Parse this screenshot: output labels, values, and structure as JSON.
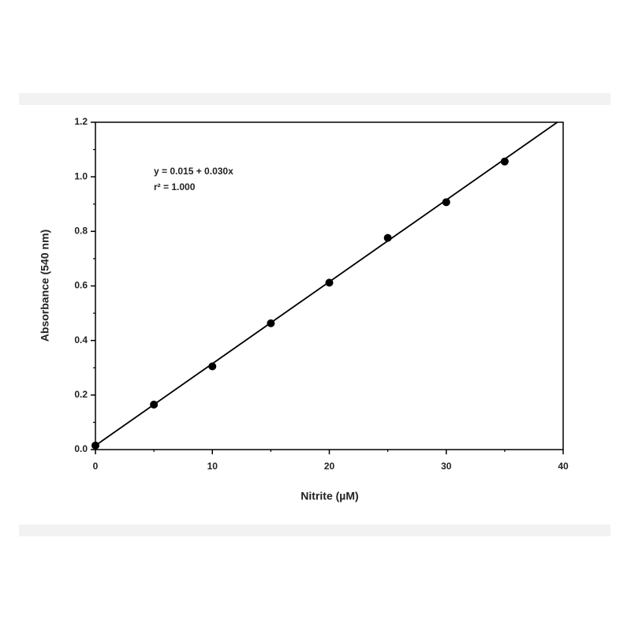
{
  "chart_data": {
    "type": "scatter",
    "annotations": [
      "y = 0.015 + 0.030x",
      "r² = 1.000"
    ],
    "xlabel": "Nitrite (µM)",
    "ylabel": "Absorbance (540 nm)",
    "x": [
      0,
      5,
      10,
      15,
      20,
      25,
      30,
      35
    ],
    "series": [
      {
        "color": "#000000",
        "values": [
          0.015,
          0.165,
          0.305,
          0.463,
          0.612,
          0.776,
          0.907,
          1.056
        ]
      }
    ],
    "fit_line": {
      "intercept": 0.015,
      "slope": 0.03,
      "color": "#000000"
    },
    "xlim": [
      0,
      40
    ],
    "xticks": [
      0,
      10,
      20,
      30,
      40
    ],
    "xminorticks": [
      5,
      15,
      25,
      35
    ],
    "ylim": [
      0,
      1.2
    ],
    "yticks": [
      {
        "value": 0,
        "label": "0.0"
      },
      0.2,
      0.4,
      0.6,
      0.8,
      {
        "value": 1,
        "label": "1.0"
      },
      1.2
    ],
    "yminorticks": [
      0.1,
      0.3,
      0.5,
      0.7,
      0.9,
      1.1
    ]
  }
}
